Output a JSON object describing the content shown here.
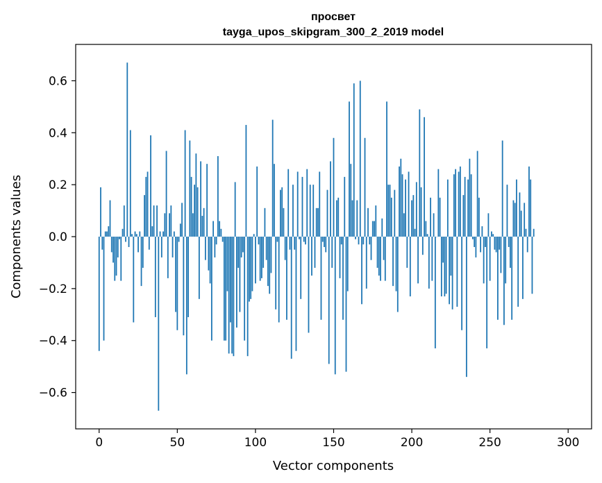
{
  "chart_data": {
    "type": "bar",
    "title": "просвет",
    "subtitle": "tayga_upos_skipgram_300_2_2019 model",
    "xlabel": "Vector components",
    "ylabel": "Components values",
    "xlim": [
      -15,
      315
    ],
    "ylim": [
      -0.74,
      0.74
    ],
    "xticks": [
      0,
      50,
      100,
      150,
      200,
      250,
      300
    ],
    "yticks": [
      -0.6,
      -0.4,
      -0.2,
      0.0,
      0.2,
      0.4,
      0.6
    ],
    "ytick_labels": [
      "−0.6",
      "−0.4",
      "−0.2",
      "0.0",
      "0.2",
      "0.4",
      "0.6"
    ],
    "bar_color": "#1f77b4",
    "grid": false,
    "values": [
      -0.44,
      0.19,
      -0.05,
      -0.4,
      0.02,
      0.02,
      0.04,
      0.14,
      -0.06,
      -0.1,
      -0.17,
      -0.15,
      -0.08,
      -0.01,
      -0.17,
      0.03,
      0.12,
      -0.02,
      0.67,
      -0.04,
      0.41,
      0.01,
      -0.33,
      0.02,
      0.01,
      -0.06,
      0.02,
      -0.19,
      -0.12,
      0.16,
      0.23,
      0.25,
      -0.05,
      0.39,
      0.04,
      0.12,
      -0.31,
      0.12,
      -0.67,
      0.02,
      -0.08,
      0.02,
      0.09,
      0.33,
      -0.16,
      0.09,
      0.12,
      -0.08,
      0.02,
      -0.29,
      -0.36,
      -0.02,
      0.05,
      0.13,
      -0.38,
      0.41,
      -0.53,
      -0.31,
      0.37,
      0.23,
      0.09,
      0.2,
      0.32,
      0.19,
      -0.24,
      0.29,
      0.08,
      0.11,
      -0.09,
      0.28,
      -0.13,
      -0.18,
      -0.4,
      0.06,
      -0.08,
      -0.03,
      0.31,
      0.06,
      0.03,
      -0.02,
      -0.4,
      -0.4,
      -0.21,
      -0.45,
      -0.33,
      -0.45,
      -0.46,
      0.21,
      -0.35,
      -0.12,
      -0.29,
      -0.08,
      -0.06,
      -0.4,
      0.43,
      -0.46,
      -0.25,
      -0.24,
      -0.21,
      0.01,
      -0.18,
      0.27,
      -0.03,
      -0.17,
      -0.16,
      -0.12,
      0.11,
      -0.09,
      -0.19,
      -0.22,
      -0.14,
      0.45,
      0.28,
      -0.28,
      -0.02,
      -0.33,
      0.18,
      0.19,
      0.11,
      -0.09,
      -0.32,
      0.26,
      -0.05,
      -0.47,
      0.2,
      -0.05,
      -0.44,
      0.25,
      -0.01,
      -0.24,
      0.23,
      -0.02,
      -0.03,
      0.26,
      -0.37,
      0.2,
      -0.15,
      0.2,
      -0.12,
      0.11,
      0.11,
      0.25,
      -0.32,
      -0.02,
      -0.04,
      -0.06,
      0.18,
      -0.49,
      0.29,
      -0.12,
      0.38,
      -0.53,
      0.14,
      0.15,
      -0.16,
      -0.03,
      -0.32,
      0.23,
      -0.52,
      -0.21,
      0.52,
      0.28,
      0.14,
      0.59,
      -0.01,
      0.14,
      -0.03,
      0.6,
      -0.26,
      -0.03,
      0.38,
      -0.2,
      0.11,
      -0.03,
      -0.09,
      0.06,
      0.06,
      0.12,
      -0.12,
      -0.15,
      -0.17,
      0.07,
      -0.09,
      -0.17,
      0.52,
      0.2,
      0.2,
      0.15,
      -0.19,
      0.18,
      -0.21,
      -0.29,
      0.27,
      0.3,
      0.24,
      0.09,
      0.22,
      -0.12,
      0.25,
      -0.23,
      0.14,
      0.16,
      0.03,
      0.21,
      -0.18,
      0.49,
      0.19,
      -0.07,
      0.46,
      0.06,
      0.01,
      -0.2,
      0.15,
      -0.17,
      0.09,
      -0.43,
      0.0,
      0.26,
      0.15,
      -0.23,
      -0.1,
      -0.23,
      -0.22,
      0.22,
      -0.26,
      -0.15,
      -0.28,
      0.24,
      0.26,
      -0.27,
      0.25,
      0.27,
      -0.36,
      0.16,
      0.23,
      -0.54,
      0.22,
      0.3,
      0.24,
      -0.01,
      -0.04,
      -0.08,
      0.33,
      0.15,
      -0.06,
      0.04,
      -0.18,
      -0.04,
      -0.43,
      0.09,
      -0.17,
      0.02,
      0.01,
      -0.05,
      -0.06,
      -0.32,
      -0.05,
      -0.14,
      0.37,
      -0.34,
      -0.18,
      0.2,
      -0.04,
      -0.12,
      -0.32,
      0.14,
      0.13,
      0.22,
      -0.27,
      0.17,
      0.1,
      -0.24,
      0.13,
      0.03,
      -0.06,
      0.27,
      0.22,
      -0.22,
      0.03
    ]
  }
}
